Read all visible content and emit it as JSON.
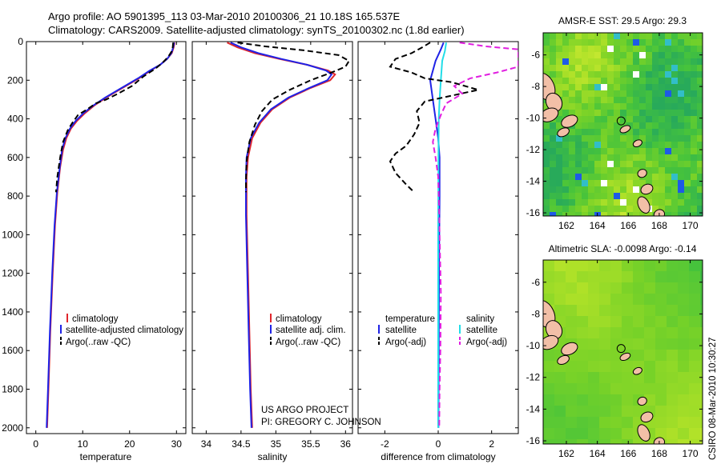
{
  "header": {
    "line1": "Argo profile: AO 5901395_113 03-Mar-2010 20100306_21 10.18S 165.537E",
    "line2": "Climatology: CARS2009. Satellite-adjusted climatology: synTS_20100302.nc (1.8d earlier)"
  },
  "colors": {
    "climatology": "#e0262c",
    "satellite": "#1f22e6",
    "argo": "#000000",
    "salinity_satellite": "#22dde8",
    "salinity_argo": "#e01ee0",
    "land": "#f2bfa7"
  },
  "chart_data": [
    {
      "type": "line",
      "name": "temperature-profile",
      "xlabel": "temperature",
      "ylabel": "",
      "xlim": [
        -2,
        32
      ],
      "ylim": [
        2030,
        0
      ],
      "xticks": [
        0,
        10,
        20,
        30
      ],
      "yticks": [
        0,
        200,
        400,
        600,
        800,
        1000,
        1200,
        1400,
        1600,
        1800,
        2000
      ],
      "legend": [
        "climatology",
        "satellite-adjusted climatology",
        "Argo(..raw -QC)"
      ],
      "legend_placement": "lower-right",
      "series": [
        {
          "name": "climatology",
          "style": "solid",
          "color": "#e0262c",
          "points": [
            [
              29.6,
              5
            ],
            [
              29.4,
              30
            ],
            [
              29.0,
              60
            ],
            [
              28.0,
              90
            ],
            [
              26.5,
              120
            ],
            [
              24.5,
              150
            ],
            [
              22.0,
              190
            ],
            [
              18.5,
              240
            ],
            [
              15.0,
              290
            ],
            [
              12.5,
              330
            ],
            [
              10.5,
              370
            ],
            [
              8.8,
              410
            ],
            [
              7.5,
              450
            ],
            [
              6.5,
              500
            ],
            [
              5.8,
              560
            ],
            [
              5.2,
              650
            ],
            [
              4.6,
              780
            ],
            [
              4.1,
              950
            ],
            [
              3.6,
              1200
            ],
            [
              3.1,
              1500
            ],
            [
              2.7,
              1800
            ],
            [
              2.4,
              2000
            ]
          ]
        },
        {
          "name": "satellite-adjusted climatology",
          "style": "solid",
          "color": "#1f22e6",
          "points": [
            [
              29.5,
              5
            ],
            [
              29.3,
              30
            ],
            [
              28.9,
              60
            ],
            [
              28.0,
              90
            ],
            [
              26.5,
              120
            ],
            [
              24.3,
              150
            ],
            [
              21.8,
              190
            ],
            [
              18.3,
              240
            ],
            [
              14.8,
              290
            ],
            [
              12.3,
              330
            ],
            [
              10.2,
              370
            ],
            [
              8.5,
              410
            ],
            [
              7.3,
              450
            ],
            [
              6.3,
              500
            ],
            [
              5.6,
              560
            ],
            [
              5.1,
              650
            ],
            [
              4.5,
              780
            ],
            [
              4.0,
              950
            ],
            [
              3.5,
              1200
            ],
            [
              3.0,
              1500
            ],
            [
              2.6,
              1800
            ],
            [
              2.3,
              2000
            ]
          ]
        },
        {
          "name": "Argo(..raw -QC)",
          "style": "dashed",
          "color": "#000000",
          "points": [
            [
              29.3,
              5
            ],
            [
              29.2,
              30
            ],
            [
              29.0,
              50
            ],
            [
              28.2,
              80
            ],
            [
              27.0,
              110
            ],
            [
              25.5,
              140
            ],
            [
              23.0,
              180
            ],
            [
              20.5,
              230
            ],
            [
              17.5,
              270
            ],
            [
              15.0,
              300
            ],
            [
              12.8,
              320
            ],
            [
              11.0,
              350
            ],
            [
              9.0,
              380
            ],
            [
              7.8,
              420
            ],
            [
              6.8,
              460
            ],
            [
              5.8,
              520
            ],
            [
              5.2,
              600
            ],
            [
              4.6,
              700
            ],
            [
              4.3,
              780
            ]
          ]
        }
      ]
    },
    {
      "type": "line",
      "name": "salinity-profile",
      "xlabel": "salinity",
      "ylabel": "",
      "xlim": [
        33.8,
        36.1
      ],
      "ylim": [
        2030,
        0
      ],
      "xticks": [
        34,
        34.5,
        35,
        35.5,
        36
      ],
      "legend": [
        "climatology",
        "satellite adj. clim.",
        "Argo(..raw -QC)"
      ],
      "legend_placement": "lower-right",
      "series": [
        {
          "name": "climatology",
          "style": "solid",
          "color": "#e0262c",
          "points": [
            [
              34.3,
              5
            ],
            [
              34.45,
              30
            ],
            [
              34.7,
              60
            ],
            [
              35.05,
              90
            ],
            [
              35.45,
              120
            ],
            [
              35.75,
              150
            ],
            [
              35.85,
              170
            ],
            [
              35.78,
              200
            ],
            [
              35.5,
              240
            ],
            [
              35.2,
              290
            ],
            [
              34.95,
              350
            ],
            [
              34.78,
              420
            ],
            [
              34.66,
              500
            ],
            [
              34.6,
              600
            ],
            [
              34.58,
              700
            ],
            [
              34.58,
              900
            ],
            [
              34.6,
              1200
            ],
            [
              34.62,
              1500
            ],
            [
              34.64,
              1800
            ],
            [
              34.66,
              2000
            ]
          ]
        },
        {
          "name": "satellite adj. clim.",
          "style": "solid",
          "color": "#1f22e6",
          "points": [
            [
              34.35,
              5
            ],
            [
              34.5,
              30
            ],
            [
              34.75,
              60
            ],
            [
              35.08,
              90
            ],
            [
              35.45,
              120
            ],
            [
              35.72,
              150
            ],
            [
              35.8,
              170
            ],
            [
              35.74,
              200
            ],
            [
              35.48,
              240
            ],
            [
              35.18,
              290
            ],
            [
              34.93,
              350
            ],
            [
              34.76,
              420
            ],
            [
              34.64,
              500
            ],
            [
              34.58,
              600
            ],
            [
              34.57,
              700
            ],
            [
              34.57,
              900
            ],
            [
              34.59,
              1200
            ],
            [
              34.61,
              1500
            ],
            [
              34.63,
              1800
            ],
            [
              34.65,
              2000
            ]
          ]
        },
        {
          "name": "Argo(..raw -QC)",
          "style": "dashed",
          "color": "#000000",
          "points": [
            [
              34.45,
              5
            ],
            [
              34.85,
              25
            ],
            [
              35.4,
              45
            ],
            [
              35.9,
              70
            ],
            [
              36.05,
              100
            ],
            [
              36.0,
              130
            ],
            [
              35.8,
              160
            ],
            [
              35.5,
              200
            ],
            [
              35.2,
              250
            ],
            [
              34.95,
              300
            ],
            [
              34.8,
              360
            ],
            [
              34.7,
              430
            ],
            [
              34.62,
              520
            ],
            [
              34.58,
              620
            ],
            [
              34.57,
              720
            ],
            [
              34.57,
              780
            ]
          ]
        }
      ]
    },
    {
      "type": "line",
      "name": "difference-from-climatology",
      "xlabel": "difference from climatology",
      "ylabel": "",
      "xlim": [
        -3.0,
        3.0
      ],
      "ylim": [
        2030,
        0
      ],
      "xticks": [
        -2,
        0,
        2
      ],
      "legend_temperature": {
        "title": "temperature",
        "items": [
          "satellite",
          "Argo(-adj)"
        ]
      },
      "legend_salinity": {
        "title": "salinity",
        "items": [
          "satellite",
          "Argo(-adj)"
        ]
      },
      "legend_placement": "lower",
      "series": [
        {
          "name": "temperature satellite",
          "style": "solid",
          "color": "#1f22e6",
          "points": [
            [
              0.2,
              5
            ],
            [
              0.1,
              40
            ],
            [
              -0.1,
              100
            ],
            [
              -0.3,
              200
            ],
            [
              -0.2,
              300
            ],
            [
              -0.1,
              400
            ],
            [
              0.0,
              500
            ],
            [
              0.05,
              600
            ],
            [
              0.05,
              800
            ],
            [
              0.03,
              1200
            ],
            [
              0.02,
              1600
            ],
            [
              0.01,
              2000
            ]
          ]
        },
        {
          "name": "salinity satellite",
          "style": "solid",
          "color": "#22dde8",
          "points": [
            [
              0.3,
              5
            ],
            [
              0.25,
              50
            ],
            [
              0.15,
              100
            ],
            [
              0.1,
              200
            ],
            [
              0.05,
              300
            ],
            [
              0.02,
              400
            ],
            [
              0.01,
              600
            ],
            [
              0.0,
              1000
            ],
            [
              0.0,
              1500
            ],
            [
              0.0,
              2000
            ]
          ]
        },
        {
          "name": "temperature Argo(-adj)",
          "style": "dashed",
          "color": "#000000",
          "points": [
            [
              -0.3,
              5
            ],
            [
              -0.6,
              30
            ],
            [
              -1.0,
              60
            ],
            [
              -1.6,
              90
            ],
            [
              -1.8,
              130
            ],
            [
              -1.0,
              160
            ],
            [
              -0.5,
              190
            ],
            [
              0.5,
              210
            ],
            [
              1.5,
              250
            ],
            [
              0.5,
              280
            ],
            [
              -0.5,
              310
            ],
            [
              -0.8,
              360
            ],
            [
              -0.7,
              420
            ],
            [
              -0.9,
              480
            ],
            [
              -1.2,
              540
            ],
            [
              -1.6,
              580
            ],
            [
              -1.8,
              620
            ],
            [
              -1.6,
              680
            ],
            [
              -1.2,
              740
            ],
            [
              -0.9,
              780
            ]
          ]
        },
        {
          "name": "salinity Argo(-adj)",
          "style": "dashed",
          "color": "#e01ee0",
          "points": [
            [
              0.8,
              5
            ],
            [
              1.8,
              25
            ],
            [
              3.0,
              40
            ],
            [
              3.0,
              130
            ],
            [
              2.2,
              160
            ],
            [
              1.2,
              190
            ],
            [
              0.6,
              230
            ],
            [
              0.9,
              270
            ],
            [
              0.3,
              320
            ],
            [
              0.1,
              380
            ],
            [
              -0.1,
              450
            ],
            [
              -0.2,
              520
            ],
            [
              -0.1,
              600
            ],
            [
              0.0,
              700
            ],
            [
              0.02,
              800
            ],
            [
              0.05,
              1000
            ],
            [
              0.1,
              1300
            ],
            [
              0.08,
              1600
            ],
            [
              0.05,
              1800
            ],
            [
              0.04,
              2000
            ]
          ]
        }
      ]
    },
    {
      "type": "heatmap",
      "name": "amsr-sst-map",
      "title": "AMSR-E SST: 29.5 Argo: 29.3",
      "xlim": [
        160.5,
        170.8
      ],
      "ylim": [
        -16.2,
        -4.6
      ],
      "xticks": [
        162,
        164,
        166,
        168,
        170
      ],
      "yticks": [
        -6,
        -8,
        -10,
        -12,
        -14,
        -16
      ],
      "marker": {
        "lon": 165.537,
        "lat": -10.18
      }
    },
    {
      "type": "heatmap",
      "name": "altimetric-sla-map",
      "title": "Altimetric SLA: -0.0098 Argo: -0.14",
      "xlim": [
        160.5,
        170.8
      ],
      "ylim": [
        -16.2,
        -4.6
      ],
      "xticks": [
        162,
        164,
        166,
        168,
        170
      ],
      "yticks": [
        -6,
        -8,
        -10,
        -12,
        -14,
        -16
      ],
      "marker": {
        "lon": 165.537,
        "lat": -10.18
      }
    }
  ],
  "annotations": {
    "project_line1": "US ARGO PROJECT",
    "project_line2": "PI: GREGORY C. JOHNSON",
    "credit": "CSIRO 08-Mar-2010 10:30:27"
  }
}
